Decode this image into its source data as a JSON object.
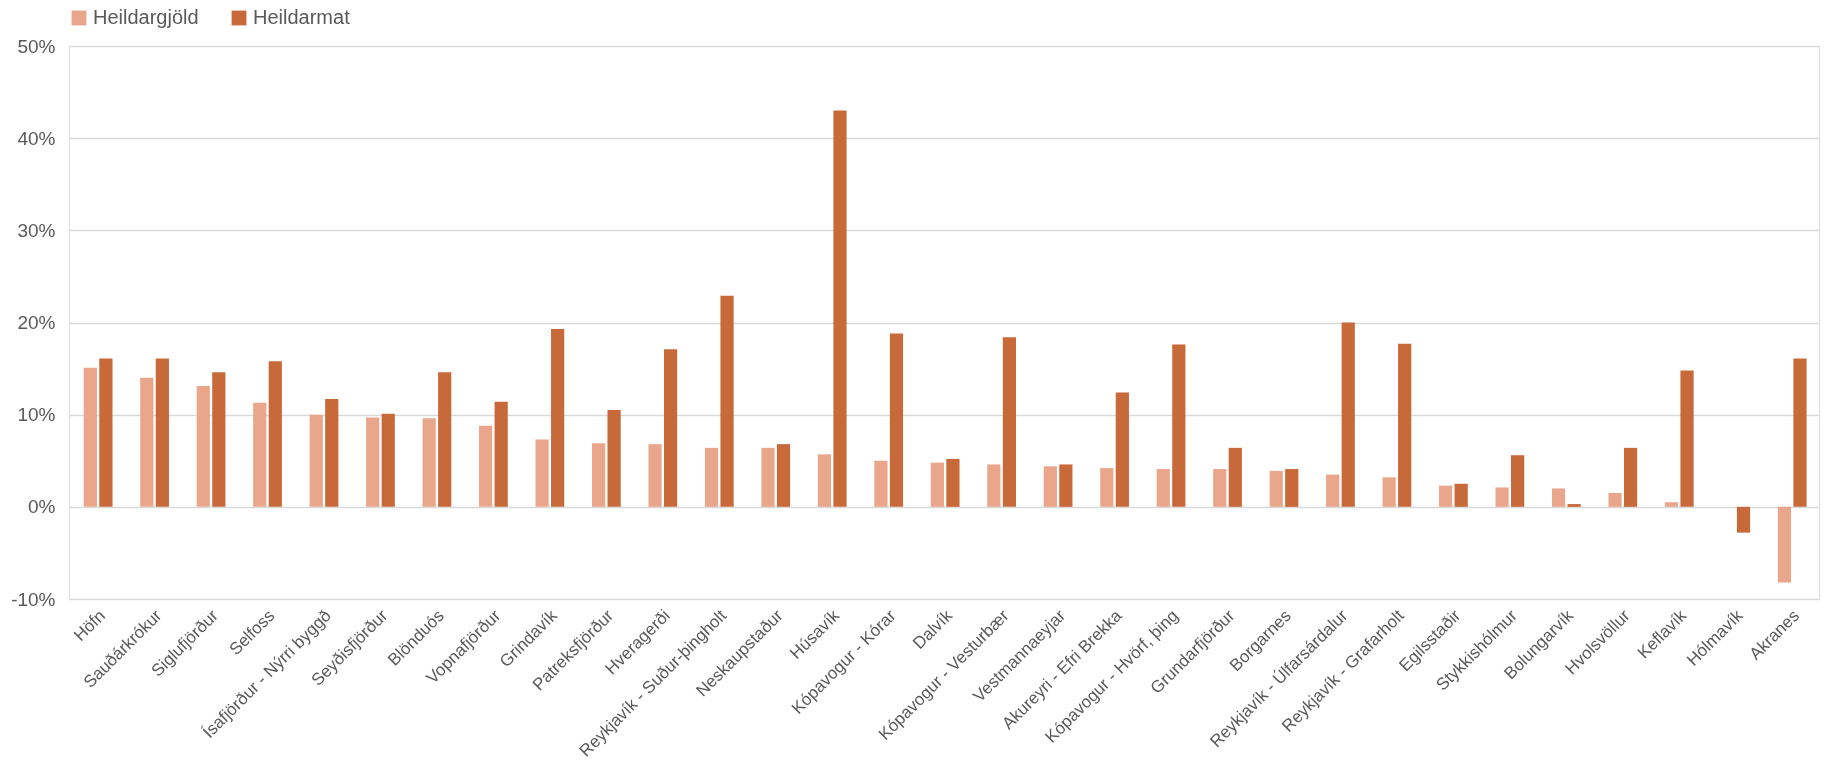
{
  "chart_data": {
    "type": "bar",
    "categories": [
      "Höfn",
      "Sauðárkrókur",
      "Siglufjörður",
      "Selfoss",
      "Ísafjörður - Nýrri byggð",
      "Seyðisfjörður",
      "Blönduós",
      "Vopnafjörður",
      "Grindavík",
      "Patreksfjörður",
      "Hveragerði",
      "Reykjavík - Suður-þingholt",
      "Neskaupstaður",
      "Húsavík",
      "Kópavogur - Kórar",
      "Dalvík",
      "Kópavogur - Vesturbær",
      "Vestmannaeyjar",
      "Akureyri - Efri Brekka",
      "Kópavogur - Hvörf, þing",
      "Grundarfjörður",
      "Borgarnes",
      "Reykjavík - Úlfarsárdalur",
      "Reykjavík - Grafarholt",
      "Egilsstaðir",
      "Stykkishólmur",
      "Bolungarvík",
      "Hvolsvöllur",
      "Keflavík",
      "Hólmavík",
      "Akranes"
    ],
    "series": [
      {
        "name": "Heildargjöld",
        "color": "#eaa68a",
        "values": [
          15.1,
          14.0,
          13.1,
          11.3,
          10.0,
          9.7,
          9.6,
          8.8,
          7.3,
          6.9,
          6.8,
          6.4,
          6.4,
          5.7,
          5.0,
          4.8,
          4.6,
          4.4,
          4.2,
          4.1,
          4.1,
          3.9,
          3.5,
          3.2,
          2.3,
          2.1,
          2.0,
          1.5,
          0.5,
          0,
          -8.2
        ]
      },
      {
        "name": "Heildarmat",
        "color": "#c8693a",
        "values": [
          16.1,
          16.1,
          14.6,
          15.8,
          11.7,
          10.1,
          14.6,
          11.4,
          19.3,
          10.5,
          17.1,
          22.9,
          6.8,
          43.0,
          18.8,
          5.2,
          18.4,
          4.6,
          12.4,
          17.6,
          6.4,
          4.1,
          20.0,
          17.7,
          2.5,
          5.6,
          0.3,
          6.4,
          14.8,
          -2.8,
          16.1
        ]
      }
    ],
    "ylim": [
      -10,
      50
    ],
    "yticks": [
      {
        "value": -10,
        "label": "-10%"
      },
      {
        "value": 0,
        "label": "0%"
      },
      {
        "value": 10,
        "label": "10%"
      },
      {
        "value": 20,
        "label": "20%"
      },
      {
        "value": 30,
        "label": "30%"
      },
      {
        "value": 40,
        "label": "40%"
      },
      {
        "value": 50,
        "label": "50%"
      }
    ],
    "grid": "y",
    "legend": "top"
  }
}
